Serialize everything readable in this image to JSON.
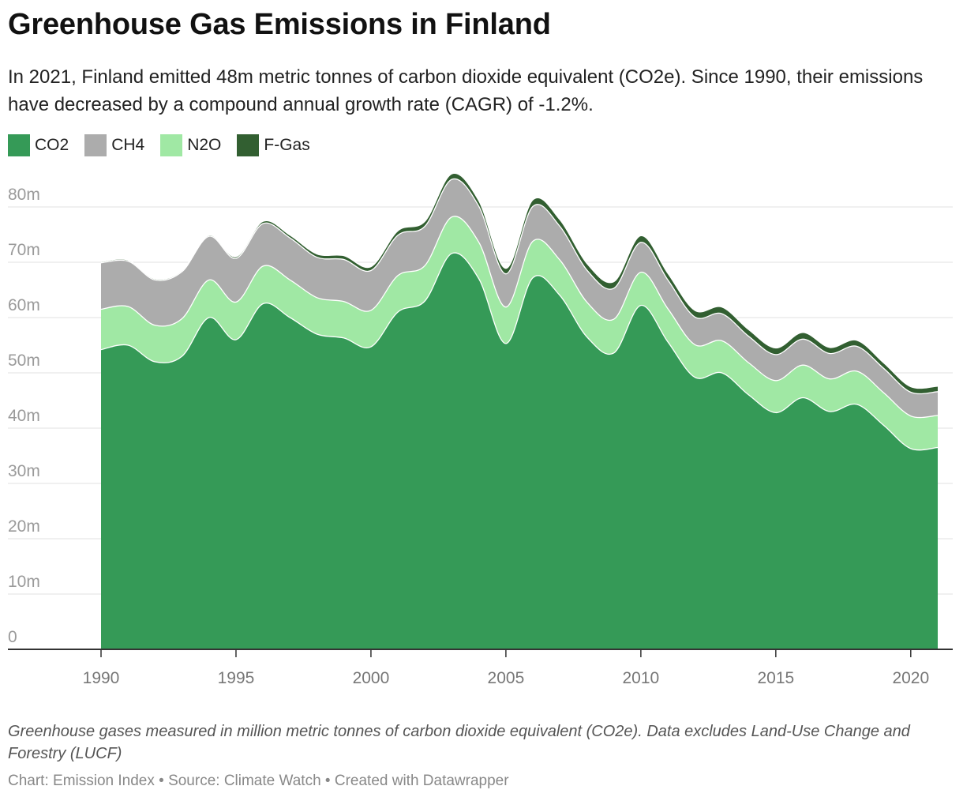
{
  "title": "Greenhouse Gas Emissions in Finland",
  "subtitle": "In 2021, Finland emitted 48m metric tonnes of carbon dioxide equivalent (CO2e). Since 1990, their emissions have decreased by a compound annual growth rate (CAGR) of -1.2%.",
  "notes": "Greenhouse gases measured in million metric tonnes of carbon dioxide equivalent (CO2e). Data excludes Land-Use Change and Forestry (LUCF)",
  "byline": "Chart: Emission Index • Source: Climate Watch • Created with Datawrapper",
  "colors": {
    "CO2": "#359a57",
    "CH4": "#acacac",
    "N2O": "#a0e8a4",
    "F-Gas": "#325f31"
  },
  "chart_data": {
    "type": "area",
    "stacked": true,
    "x": [
      1990,
      1991,
      1992,
      1993,
      1994,
      1995,
      1996,
      1997,
      1998,
      1999,
      2000,
      2001,
      2002,
      2003,
      2004,
      2005,
      2006,
      2007,
      2008,
      2009,
      2010,
      2011,
      2012,
      2013,
      2014,
      2015,
      2016,
      2017,
      2018,
      2019,
      2020,
      2021
    ],
    "series": [
      {
        "name": "CO2",
        "values": [
          54.2,
          55.0,
          52.0,
          53.0,
          60.0,
          56.0,
          62.5,
          60.0,
          57.0,
          56.3,
          54.7,
          61.0,
          63.0,
          71.6,
          67.0,
          55.3,
          67.2,
          64.0,
          56.5,
          53.6,
          62.2,
          55.6,
          49.2,
          50.0,
          46.0,
          42.8,
          45.5,
          43.0,
          44.3,
          40.5,
          36.3,
          36.5
        ]
      },
      {
        "name": "N2O",
        "values": [
          7.3,
          7.0,
          6.6,
          6.8,
          6.8,
          6.8,
          6.8,
          6.8,
          6.6,
          6.6,
          6.6,
          6.6,
          6.4,
          6.6,
          6.6,
          6.6,
          6.6,
          6.4,
          6.3,
          6.1,
          6.0,
          6.0,
          5.9,
          5.8,
          5.8,
          5.8,
          5.9,
          5.9,
          6.0,
          5.9,
          5.9,
          5.8
        ]
      },
      {
        "name": "CH4",
        "values": [
          8.4,
          8.2,
          8.2,
          8.5,
          7.9,
          7.9,
          7.7,
          7.6,
          7.3,
          7.6,
          7.2,
          7.3,
          7.1,
          6.8,
          6.5,
          6.0,
          6.3,
          6.1,
          5.8,
          5.6,
          5.4,
          5.2,
          5.0,
          4.9,
          4.8,
          4.7,
          4.7,
          4.6,
          4.5,
          4.4,
          4.3,
          4.3
        ]
      },
      {
        "name": "F-Gas",
        "values": [
          0.2,
          0.2,
          0.2,
          0.2,
          0.2,
          0.3,
          0.4,
          0.5,
          0.6,
          0.7,
          0.7,
          0.8,
          0.9,
          1.0,
          1.0,
          1.0,
          1.2,
          1.2,
          1.2,
          1.2,
          1.2,
          1.2,
          1.2,
          1.2,
          1.2,
          1.2,
          1.2,
          1.1,
          1.1,
          1.0,
          1.0,
          1.0
        ]
      }
    ],
    "ylim": [
      0,
      85
    ],
    "y_ticks": [
      0,
      10,
      20,
      30,
      40,
      50,
      60,
      70,
      80
    ],
    "y_tick_labels": [
      "0",
      "10m",
      "20m",
      "30m",
      "40m",
      "50m",
      "60m",
      "70m",
      "80m"
    ],
    "x_ticks": [
      1990,
      1995,
      2000,
      2005,
      2010,
      2015,
      2020
    ],
    "xlabel": "",
    "ylabel": "",
    "grid": true,
    "legend_position": "top-left"
  }
}
